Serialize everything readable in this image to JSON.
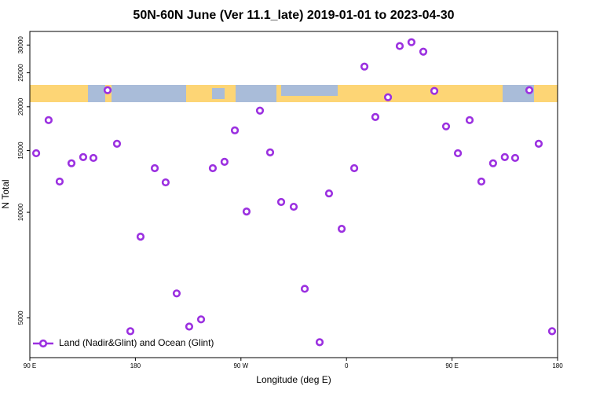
{
  "chart_data": {
    "type": "scatter",
    "title": "50N-60N June (Ver 11.1_late)   2019-01-01 to 2023-04-30",
    "xlabel": "Longitude (deg E)",
    "ylabel": "N Total",
    "series": [
      {
        "name": "Land (Nadir&Glint) and Ocean (Glint)",
        "color": "#9b30e0",
        "x": [
          95.4,
          106,
          115.4,
          125.5,
          135.5,
          144.2,
          156.3,
          164.3,
          175.7,
          184.4,
          196.5,
          205.8,
          215.2,
          225.9,
          236,
          246,
          256,
          264.8,
          274.8,
          286.2,
          294.9,
          304.3,
          315,
          324.4,
          337.1,
          345.1,
          355.9,
          366.6,
          375.3,
          384.6,
          395.4,
          405.4,
          415.4,
          425.5,
          434.9,
          444.9,
          455,
          465,
          475,
          485,
          495,
          503.8,
          515.9,
          523.9,
          535.3
        ],
        "values": [
          14740,
          18320,
          12240,
          13800,
          14370,
          14290,
          22300,
          15690,
          4580,
          8520,
          13360,
          12170,
          5870,
          4720,
          4950,
          13360,
          13930,
          17130,
          10050,
          19500,
          14820,
          10700,
          10370,
          6050,
          4260,
          11320,
          8970,
          13360,
          26040,
          18700,
          21290,
          29800,
          30560,
          28720,
          22190,
          17580,
          14740,
          18320,
          12240,
          13800,
          14370,
          14290,
          22300,
          15690,
          4580
        ]
      }
    ],
    "xlim": [
      90,
      540
    ],
    "xticks": [
      {
        "value": 90,
        "label": "90 E"
      },
      180,
      {
        "value": 270,
        "label": "90 W"
      },
      {
        "value": 360,
        "label": "0"
      },
      {
        "value": 450,
        "label": "90 E"
      },
      {
        "value": 540,
        "label": "180"
      }
    ],
    "ylim": [
      3850,
      32800
    ],
    "yscale": "log",
    "yticks": [
      5000,
      10000,
      15000,
      20000,
      25000,
      30000
    ],
    "legend": "lower left"
  }
}
